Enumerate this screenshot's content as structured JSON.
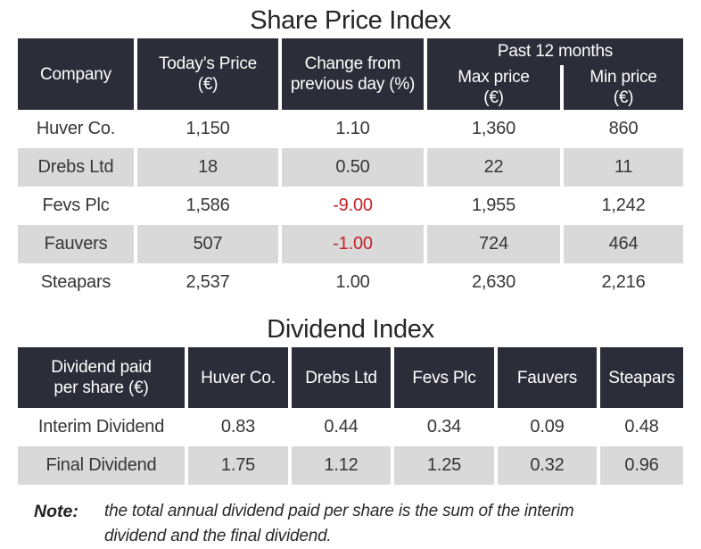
{
  "colors": {
    "header_bg": "#2b2d38",
    "alt_row_bg": "#d9d9d9",
    "negative": "#c3232a",
    "body_text": "#363636",
    "header_text": "#ffffff"
  },
  "share_table": {
    "title": "Share Price Index",
    "col_company": "Company",
    "col_price_l1": "Today’s Price",
    "col_price_l2": "(€)",
    "col_change_l1": "Change from",
    "col_change_l2": "previous day (%)",
    "group_header": "Past 12 months",
    "col_max_l1": "Max price",
    "col_max_l2": "(€)",
    "col_min_l1": "Min price",
    "col_min_l2": "(€)",
    "rows": [
      {
        "company": "Huver Co.",
        "price": "1,150",
        "change": "1.10",
        "max": "1,360",
        "min": "860"
      },
      {
        "company": "Drebs Ltd",
        "price": "18",
        "change": "0.50",
        "max": "22",
        "min": "11"
      },
      {
        "company": "Fevs Plc",
        "price": "1,586",
        "change": "-9.00",
        "max": "1,955",
        "min": "1,242"
      },
      {
        "company": "Fauvers",
        "price": "507",
        "change": "-1.00",
        "max": "724",
        "min": "464"
      },
      {
        "company": "Steapars",
        "price": "2,537",
        "change": "1.00",
        "max": "2,630",
        "min": "2,216"
      }
    ]
  },
  "dividend_table": {
    "title": "Dividend Index",
    "header_l1": "Dividend paid",
    "header_l2": "per share (€)",
    "companies": [
      "Huver Co.",
      "Drebs Ltd",
      "Fevs Plc",
      "Fauvers",
      "Steapars"
    ],
    "rows": [
      {
        "label": "Interim Dividend",
        "v0": "0.83",
        "v1": "0.44",
        "v2": "0.34",
        "v3": "0.09",
        "v4": "0.48"
      },
      {
        "label": "Final Dividend",
        "v0": "1.75",
        "v1": "1.12",
        "v2": "1.25",
        "v3": "0.32",
        "v4": "0.96"
      }
    ]
  },
  "note": {
    "label": "Note:",
    "text": "the total annual dividend paid per share is the sum of the interim dividend and the final dividend."
  },
  "chart_data": [
    {
      "type": "table",
      "title": "Share Price Index",
      "columns": [
        "Company",
        "Today’s Price (€)",
        "Change from previous day (%)",
        "Past 12 months – Max price (€)",
        "Past 12 months – Min price (€)"
      ],
      "rows": [
        [
          "Huver Co.",
          1150,
          1.1,
          1360,
          860
        ],
        [
          "Drebs Ltd",
          18,
          0.5,
          22,
          11
        ],
        [
          "Fevs Plc",
          1586,
          -9.0,
          1955,
          1242
        ],
        [
          "Fauvers",
          507,
          -1.0,
          724,
          464
        ],
        [
          "Steapars",
          2537,
          1.0,
          2630,
          2216
        ]
      ],
      "notes": "Negative change values shown in red"
    },
    {
      "type": "table",
      "title": "Dividend Index",
      "columns": [
        "Dividend paid per share (€)",
        "Huver Co.",
        "Drebs Ltd",
        "Fevs Plc",
        "Fauvers",
        "Steapars"
      ],
      "rows": [
        [
          "Interim Dividend",
          0.83,
          0.44,
          0.34,
          0.09,
          0.48
        ],
        [
          "Final Dividend",
          1.75,
          1.12,
          1.25,
          0.32,
          0.96
        ]
      ]
    }
  ]
}
